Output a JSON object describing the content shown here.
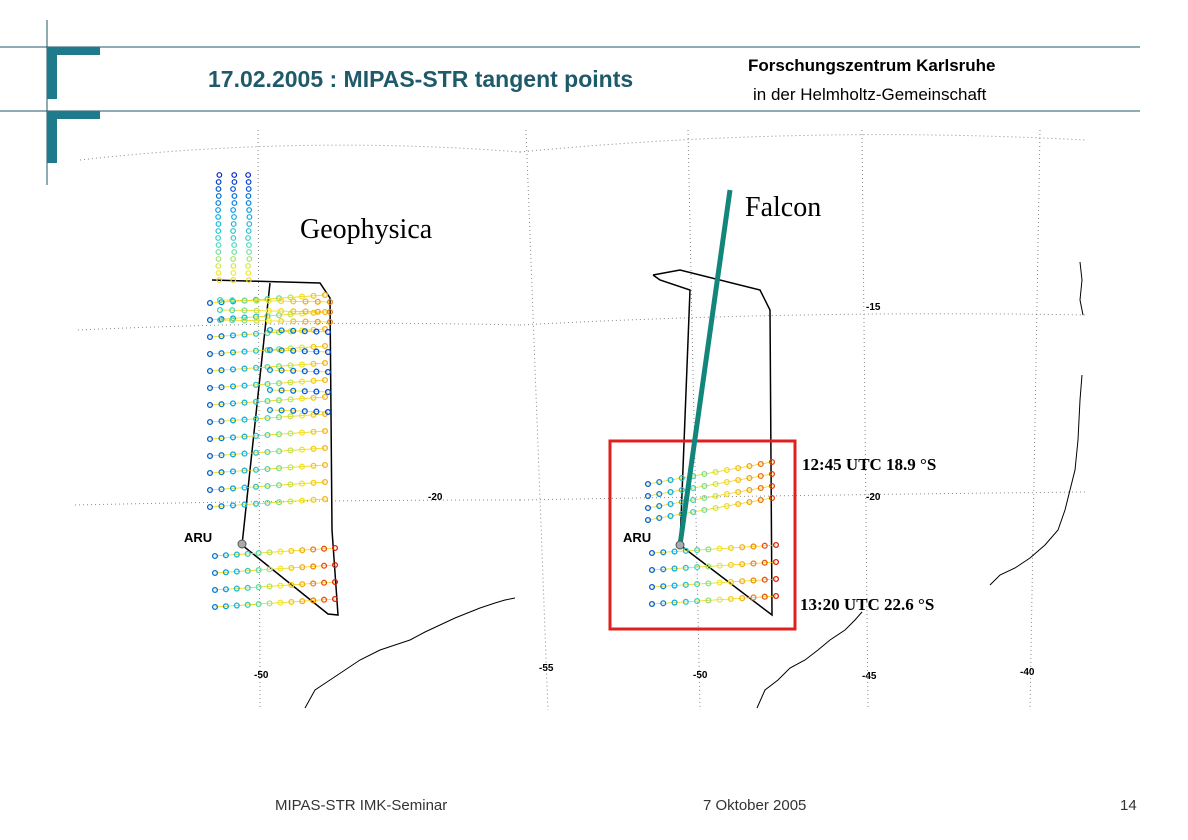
{
  "header": {
    "title": "17.02.2005 : MIPAS-STR tangent points",
    "org_line1": "Forschungszentrum Karlsruhe",
    "org_line2": "in der Helmholtz-Gemeinschaft",
    "accent_color": "#1f5a6b"
  },
  "left_map": {
    "label": "Geophysica",
    "station": "ARU",
    "ticks": [
      "-20",
      "-50"
    ]
  },
  "right_map": {
    "label": "Falcon",
    "station": "ARU",
    "ticks": [
      "-15",
      "-20",
      "-55",
      "-50",
      "-45",
      "-40"
    ],
    "annotations": {
      "start": "12:45 UTC  18.9 °S",
      "end": "13:20 UTC  22.6 °S"
    },
    "highlight_color": "#e0201e",
    "falcon_track_color": "#13867c"
  },
  "footer": {
    "left": "MIPAS-STR   IMK-Seminar",
    "center": "7 Oktober 2005",
    "page": "14"
  }
}
